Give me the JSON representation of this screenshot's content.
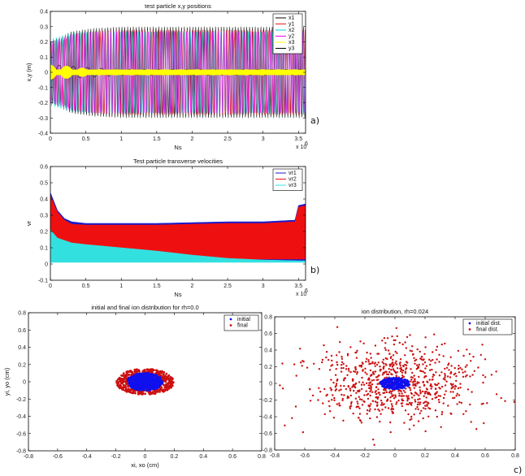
{
  "chart_data": [
    {
      "id": "a",
      "type": "line",
      "panel_label": "a)",
      "title": "test particle x,y positions",
      "xlabel": "Ns",
      "ylabel": "x,y (m)",
      "x_exponent": "x 10",
      "x_exponent_power": "6",
      "xlim": [
        0,
        3.6
      ],
      "ylim": [
        -0.4,
        0.4
      ],
      "xticks": [
        "0",
        "0.5",
        "1",
        "1.5",
        "2",
        "2.5",
        "3",
        "3.5"
      ],
      "xtick_values": [
        0,
        0.5,
        1,
        1.5,
        2,
        2.5,
        3,
        3.5
      ],
      "yticks": [
        "-0.4",
        "-0.3",
        "-0.2",
        "-0.1",
        "0",
        "0.1",
        "0.2",
        "0.3",
        "0.4"
      ],
      "ytick_values": [
        -0.4,
        -0.3,
        -0.2,
        -0.1,
        0,
        0.1,
        0.2,
        0.3,
        0.4
      ],
      "legend_position": "top-right",
      "series": [
        {
          "name": "x1",
          "color": "#000000",
          "x": [
            0,
            0.3,
            0.6,
            1.0,
            1.5,
            2.0,
            2.5,
            3.0,
            3.5
          ],
          "amplitude": [
            0.2,
            0.27,
            0.29,
            0.3,
            0.3,
            0.3,
            0.3,
            0.3,
            0.3
          ]
        },
        {
          "name": "y1",
          "color": "#e41a1a",
          "x": [
            0,
            0.3,
            0.6,
            1.0,
            1.5,
            2.0,
            2.5,
            3.0,
            3.5
          ],
          "amplitude": [
            0.18,
            0.24,
            0.27,
            0.28,
            0.28,
            0.28,
            0.28,
            0.28,
            0.28
          ]
        },
        {
          "name": "x2",
          "color": "#00d6d6",
          "x": [
            0,
            0.3,
            0.6,
            1.0,
            1.5,
            2.0,
            2.5,
            3.0,
            3.5
          ],
          "amplitude": [
            0.22,
            0.26,
            0.27,
            0.27,
            0.27,
            0.27,
            0.27,
            0.27,
            0.27
          ]
        },
        {
          "name": "y2",
          "color": "#ff00ff",
          "x": [
            0,
            0.3,
            0.6,
            1.0,
            1.5,
            2.0,
            2.5,
            3.0,
            3.5
          ],
          "amplitude": [
            0.2,
            0.25,
            0.27,
            0.27,
            0.27,
            0.27,
            0.27,
            0.27,
            0.27
          ]
        },
        {
          "name": "x3",
          "color": "#ffff00",
          "x": [
            0,
            0.3,
            0.6,
            1.0,
            1.5,
            2.0,
            2.5,
            3.0,
            3.5
          ],
          "amplitude": [
            0.05,
            0.04,
            0.02,
            0.02,
            0.02,
            0.02,
            0.02,
            0.02,
            0.02
          ]
        },
        {
          "name": "y3",
          "color": "#000000",
          "x": [
            0,
            0.3,
            0.6,
            1.0,
            1.5,
            2.0,
            2.5,
            3.0,
            3.5
          ],
          "amplitude": [
            0.05,
            0.04,
            0.03,
            0.02,
            0.02,
            0.02,
            0.02,
            0.02,
            0.02
          ]
        }
      ]
    },
    {
      "id": "b",
      "type": "area",
      "panel_label": "b)",
      "title": "Test particle transverse velocities",
      "xlabel": "Ns",
      "ylabel": "vr",
      "x_exponent": "x 10",
      "x_exponent_power": "6",
      "xlim": [
        0,
        3.6
      ],
      "ylim": [
        -0.1,
        0.6
      ],
      "xticks": [
        "0",
        "0.5",
        "1",
        "1.5",
        "2",
        "2.5",
        "3",
        "3.5"
      ],
      "xtick_values": [
        0,
        0.5,
        1,
        1.5,
        2,
        2.5,
        3,
        3.5
      ],
      "yticks": [
        "-0.1",
        "0",
        "0.1",
        "0.2",
        "0.3",
        "0.4",
        "0.5",
        "0.6"
      ],
      "ytick_values": [
        -0.1,
        0,
        0.1,
        0.2,
        0.3,
        0.4,
        0.5,
        0.6
      ],
      "legend_position": "top-right",
      "series": [
        {
          "name": "vr1",
          "color": "#1a1acc",
          "x": [
            0,
            0.1,
            0.2,
            0.3,
            0.5,
            1.0,
            1.5,
            2.0,
            2.5,
            3.0,
            3.45,
            3.5,
            3.6
          ],
          "upper": [
            0.44,
            0.33,
            0.28,
            0.26,
            0.25,
            0.25,
            0.25,
            0.255,
            0.26,
            0.26,
            0.27,
            0.36,
            0.37
          ],
          "lower": [
            0.02,
            0.02,
            0.02,
            0.02,
            0.02,
            0.02,
            0.02,
            0.02,
            0.02,
            0.02,
            0.02,
            0.02,
            0.02
          ]
        },
        {
          "name": "vr2",
          "color": "#ee1010",
          "x": [
            0,
            0.1,
            0.2,
            0.3,
            0.5,
            1.0,
            1.5,
            2.0,
            2.5,
            3.0,
            3.45,
            3.5,
            3.6
          ],
          "upper": [
            0.42,
            0.32,
            0.27,
            0.245,
            0.24,
            0.24,
            0.24,
            0.245,
            0.25,
            0.25,
            0.26,
            0.35,
            0.36
          ],
          "lower": [
            0.03,
            0.03,
            0.03,
            0.03,
            0.03,
            0.03,
            0.03,
            0.03,
            0.03,
            0.03,
            0.03,
            0.03,
            0.03
          ]
        },
        {
          "name": "vr3",
          "color": "#33e0e0",
          "x": [
            0,
            0.1,
            0.3,
            0.5,
            1.0,
            1.5,
            2.0,
            2.5,
            3.0,
            3.5,
            3.6
          ],
          "upper": [
            0.21,
            0.16,
            0.13,
            0.12,
            0.1,
            0.08,
            0.055,
            0.035,
            0.025,
            0.02,
            0.02
          ],
          "lower": [
            0.01,
            0.01,
            0.01,
            0.01,
            0.01,
            0.01,
            0.01,
            0.01,
            0.01,
            0.01,
            0.01
          ]
        }
      ]
    },
    {
      "id": "c-left",
      "type": "scatter",
      "title": "initial and final ion distribution for rh=0.0",
      "xlabel": "xi, xo (cm)",
      "ylabel": "yi, yo (cm)",
      "xlim": [
        -0.8,
        0.8
      ],
      "ylim": [
        -0.8,
        0.8
      ],
      "xticks": [
        "-0.8",
        "-0.6",
        "-0.4",
        "-0.2",
        "0",
        "0.2",
        "0.4",
        "0.6",
        "0.8"
      ],
      "xtick_values": [
        -0.8,
        -0.6,
        -0.4,
        -0.2,
        0,
        0.2,
        0.4,
        0.6,
        0.8
      ],
      "yticks": [
        "-0.8",
        "-0.6",
        "-0.4",
        "-0.2",
        "0",
        "0.2",
        "0.4",
        "0.6",
        "0.8"
      ],
      "ytick_values": [
        -0.8,
        -0.6,
        -0.4,
        -0.2,
        0,
        0.2,
        0.4,
        0.6,
        0.8
      ],
      "legend_position": "top-right",
      "series": [
        {
          "name": "initial",
          "color": "#1010ee",
          "center": [
            0,
            0
          ],
          "radius_x": 0.12,
          "radius_y": 0.1
        },
        {
          "name": "final",
          "color": "#cc1010",
          "center": [
            0,
            0
          ],
          "radius_x": 0.2,
          "radius_y": 0.15
        }
      ]
    },
    {
      "id": "c-right",
      "type": "scatter",
      "panel_label": "c)",
      "title": "ion distribution, rh=0.024",
      "xlim": [
        -0.8,
        0.8
      ],
      "ylim": [
        -0.8,
        0.8
      ],
      "xticks": [
        "-0.8",
        "-0.6",
        "-0.4",
        "-0.2",
        "0",
        "0.2",
        "0.4",
        "0.6",
        "0.8"
      ],
      "xtick_values": [
        -0.8,
        -0.6,
        -0.4,
        -0.2,
        0,
        0.2,
        0.4,
        0.6,
        0.8
      ],
      "yticks": [
        "-0.8",
        "-0.6",
        "-0.4",
        "-0.2",
        "0",
        "0.2",
        "0.4",
        "0.6",
        "0.8"
      ],
      "ytick_values": [
        -0.8,
        -0.6,
        -0.4,
        -0.2,
        0,
        0.2,
        0.4,
        0.6,
        0.8
      ],
      "legend_position": "top-right",
      "series": [
        {
          "name": "initial dist.",
          "color": "#1010ee",
          "center": [
            0,
            0
          ],
          "radius_x": 0.1,
          "radius_y": 0.07
        },
        {
          "name": "final dist.",
          "color": "#cc1010",
          "center": [
            0,
            0
          ],
          "radius_x": 0.55,
          "radius_y": 0.45
        }
      ]
    }
  ]
}
